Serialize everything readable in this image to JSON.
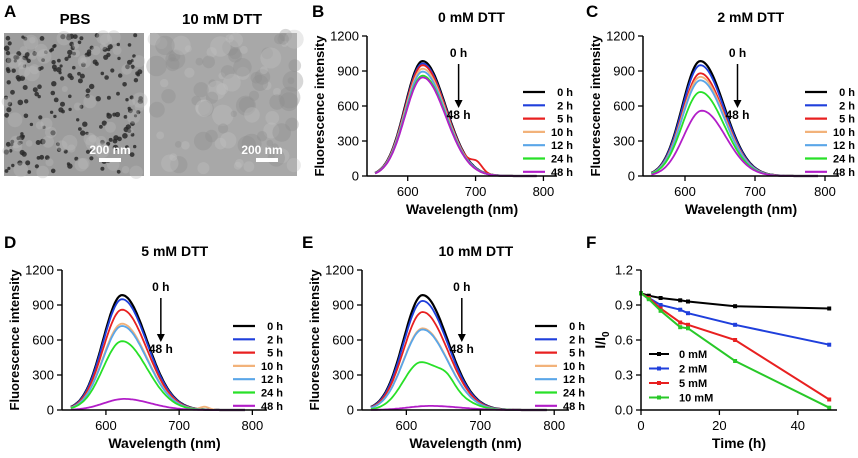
{
  "panel_labels": {
    "A": "A",
    "B": "B",
    "C": "C",
    "D": "D",
    "E": "E",
    "F": "F"
  },
  "tem": {
    "left_title": "PBS",
    "right_title": "10 mM DTT",
    "scale_bar_left": "200 nm",
    "scale_bar_right": "200 nm"
  },
  "legend_times": [
    "0 h",
    "2 h",
    "5 h",
    "10 h",
    "12 h",
    "24 h",
    "48 h"
  ],
  "series_colors": [
    "#000000",
    "#1f3fdc",
    "#e82020",
    "#f2b27a",
    "#5aa6e8",
    "#28e028",
    "#b21ec8"
  ],
  "arrow_labels": {
    "start": "0 h",
    "end": "48 h"
  },
  "chart_data": [
    {
      "type": "line",
      "panel": "B",
      "title": "0 mM DTT",
      "xlabel": "Wavelength (nm)",
      "ylabel": "Fluorescence intensity",
      "xlim": [
        540,
        820
      ],
      "ylim": [
        0,
        1200
      ],
      "xticks": [
        600,
        700,
        800
      ],
      "yticks": [
        0,
        300,
        600,
        900,
        1200
      ],
      "series": [
        {
          "name": "0 h",
          "peak": 985,
          "center": 622,
          "sigma_left": 26,
          "sigma_right": 34
        },
        {
          "name": "2 h",
          "peak": 965,
          "center": 622,
          "sigma_left": 26,
          "sigma_right": 34
        },
        {
          "name": "5 h",
          "peak": 950,
          "center": 622,
          "sigma_left": 26,
          "sigma_right": 34,
          "bump": {
            "x": 702,
            "h": 70,
            "w": 8
          }
        },
        {
          "name": "10 h",
          "peak": 920,
          "center": 622,
          "sigma_left": 26,
          "sigma_right": 34
        },
        {
          "name": "12 h",
          "peak": 895,
          "center": 622,
          "sigma_left": 26,
          "sigma_right": 34
        },
        {
          "name": "24 h",
          "peak": 860,
          "center": 622,
          "sigma_left": 26,
          "sigma_right": 34
        },
        {
          "name": "48 h",
          "peak": 845,
          "center": 622,
          "sigma_left": 26,
          "sigma_right": 34
        }
      ]
    },
    {
      "type": "line",
      "panel": "C",
      "title": "2 mM DTT",
      "xlabel": "Wavelength (nm)",
      "ylabel": "Fluorescence intensity",
      "xlim": [
        540,
        820
      ],
      "ylim": [
        0,
        1200
      ],
      "xticks": [
        600,
        700,
        800
      ],
      "yticks": [
        0,
        300,
        600,
        900,
        1200
      ],
      "series": [
        {
          "name": "0 h",
          "peak": 985,
          "center": 622,
          "sigma_left": 26,
          "sigma_right": 34
        },
        {
          "name": "2 h",
          "peak": 950,
          "center": 622,
          "sigma_left": 26,
          "sigma_right": 34
        },
        {
          "name": "5 h",
          "peak": 880,
          "center": 622,
          "sigma_left": 26,
          "sigma_right": 34
        },
        {
          "name": "10 h",
          "peak": 850,
          "center": 622,
          "sigma_left": 26,
          "sigma_right": 34
        },
        {
          "name": "12 h",
          "peak": 820,
          "center": 622,
          "sigma_left": 26,
          "sigma_right": 34
        },
        {
          "name": "24 h",
          "peak": 720,
          "center": 622,
          "sigma_left": 26,
          "sigma_right": 34
        },
        {
          "name": "48 h",
          "peak": 560,
          "center": 624,
          "sigma_left": 26,
          "sigma_right": 34
        }
      ]
    },
    {
      "type": "line",
      "panel": "D",
      "title": "5 mM DTT",
      "xlabel": "Wavelength (nm)",
      "ylabel": "Fluorescence intensity",
      "xlim": [
        540,
        820
      ],
      "ylim": [
        0,
        1200
      ],
      "xticks": [
        600,
        700,
        800
      ],
      "yticks": [
        0,
        300,
        600,
        900,
        1200
      ],
      "series": [
        {
          "name": "0 h",
          "peak": 985,
          "center": 622,
          "sigma_left": 26,
          "sigma_right": 34
        },
        {
          "name": "2 h",
          "peak": 950,
          "center": 622,
          "sigma_left": 26,
          "sigma_right": 34
        },
        {
          "name": "5 h",
          "peak": 860,
          "center": 622,
          "sigma_left": 26,
          "sigma_right": 34
        },
        {
          "name": "10 h",
          "peak": 740,
          "center": 622,
          "sigma_left": 26,
          "sigma_right": 34,
          "bump": {
            "x": 735,
            "h": 25,
            "w": 6
          }
        },
        {
          "name": "12 h",
          "peak": 720,
          "center": 622,
          "sigma_left": 26,
          "sigma_right": 34
        },
        {
          "name": "24 h",
          "peak": 590,
          "center": 622,
          "sigma_left": 26,
          "sigma_right": 34
        },
        {
          "name": "48 h",
          "peak": 95,
          "center": 625,
          "sigma_left": 28,
          "sigma_right": 36
        }
      ]
    },
    {
      "type": "line",
      "panel": "E",
      "title": "10 mM DTT",
      "xlabel": "Wavelength (nm)",
      "ylabel": "Fluorescence intensity",
      "xlim": [
        540,
        820
      ],
      "ylim": [
        0,
        1200
      ],
      "xticks": [
        600,
        700,
        800
      ],
      "yticks": [
        0,
        300,
        600,
        900,
        1200
      ],
      "series": [
        {
          "name": "0 h",
          "peak": 985,
          "center": 622,
          "sigma_left": 26,
          "sigma_right": 34
        },
        {
          "name": "2 h",
          "peak": 935,
          "center": 622,
          "sigma_left": 26,
          "sigma_right": 34
        },
        {
          "name": "5 h",
          "peak": 840,
          "center": 622,
          "sigma_left": 26,
          "sigma_right": 34
        },
        {
          "name": "10 h",
          "peak": 700,
          "center": 622,
          "sigma_left": 26,
          "sigma_right": 34
        },
        {
          "name": "12 h",
          "peak": 690,
          "center": 622,
          "sigma_left": 26,
          "sigma_right": 34
        },
        {
          "name": "24 h",
          "peak": 410,
          "center": 620,
          "sigma_left": 24,
          "sigma_right": 36,
          "bump": {
            "x": 655,
            "h": 60,
            "w": 10
          }
        },
        {
          "name": "48 h",
          "peak": 35,
          "center": 632,
          "sigma_left": 30,
          "sigma_right": 40
        }
      ]
    },
    {
      "type": "line",
      "panel": "F",
      "title": "",
      "xlabel": "Time (h)",
      "ylabel": "I/I",
      "ylabel_sub": "0",
      "xlim": [
        0,
        50
      ],
      "ylim": [
        0,
        1.2
      ],
      "xticks": [
        0,
        20,
        40
      ],
      "yticks": [
        0.0,
        0.3,
        0.6,
        0.9,
        1.2
      ],
      "x": [
        0,
        2,
        5,
        10,
        12,
        24,
        48
      ],
      "series": [
        {
          "name": "0 mM",
          "values": [
            1.0,
            0.98,
            0.96,
            0.94,
            0.93,
            0.89,
            0.87
          ]
        },
        {
          "name": "2 mM",
          "values": [
            1.0,
            0.96,
            0.9,
            0.86,
            0.83,
            0.73,
            0.56
          ]
        },
        {
          "name": "5 mM",
          "values": [
            1.0,
            0.96,
            0.87,
            0.75,
            0.73,
            0.6,
            0.09
          ]
        },
        {
          "name": "10 mM",
          "values": [
            1.0,
            0.95,
            0.85,
            0.71,
            0.7,
            0.42,
            0.02
          ]
        }
      ],
      "series_colors": [
        "#000000",
        "#1f3fdc",
        "#e82020",
        "#28c828"
      ]
    }
  ]
}
